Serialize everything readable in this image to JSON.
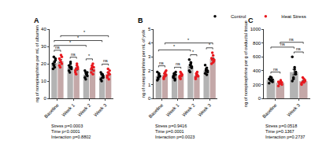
{
  "chart_data": [
    {
      "type": "bar",
      "label": "A",
      "ylabel": "ng of norepinephrine per mL of albumen",
      "categories": [
        "Baseline",
        "Week 1",
        "Week 2",
        "Week 3"
      ],
      "ylim": [
        0,
        40
      ],
      "yticks": [
        0,
        10,
        20,
        30,
        40
      ],
      "series": [
        {
          "name": "Control",
          "color": "#000000",
          "values": [
            20.5,
            18,
            13.8,
            12.6
          ],
          "errors": [
            0.9,
            0.7,
            0.6,
            0.6
          ],
          "points": [
            [
              17,
              19,
              21,
              22,
              20,
              24,
              18,
              23
            ],
            [
              16,
              18,
              20,
              17,
              19,
              15,
              21,
              18
            ],
            [
              12,
              15,
              14,
              13,
              16,
              11,
              14,
              15
            ],
            [
              11,
              14,
              12,
              13,
              15,
              10,
              14,
              12
            ]
          ]
        },
        {
          "name": "Heat Stress",
          "color": "#e8191f",
          "values": [
            21.5,
            17,
            17.1,
            14
          ],
          "errors": [
            0.9,
            0.7,
            0.7,
            0.7
          ],
          "points": [
            [
              19,
              22,
              25,
              20,
              23,
              18,
              21,
              24
            ],
            [
              15,
              17,
              19,
              18,
              16,
              14,
              20,
              17
            ],
            [
              15,
              18,
              20,
              16,
              17,
              19,
              14,
              18
            ],
            [
              12,
              15,
              14,
              16,
              13,
              17,
              11,
              14
            ]
          ]
        }
      ],
      "brackets": [
        {
          "from": {
            "category": "Baseline",
            "series": "Control"
          },
          "to": {
            "category": "Baseline",
            "series": "Heat Stress"
          },
          "label": "ns"
        },
        {
          "from": {
            "category": "Week 1",
            "series": "Control"
          },
          "to": {
            "category": "Week 1",
            "series": "Heat Stress"
          },
          "label": "ns"
        },
        {
          "from": {
            "category": "Week 2",
            "series": "Control"
          },
          "to": {
            "category": "Week 2",
            "series": "Heat Stress"
          },
          "label": "*"
        },
        {
          "from": {
            "category": "Week 3",
            "series": "Control"
          },
          "to": {
            "category": "Week 3",
            "series": "Heat Stress"
          },
          "label": "ns"
        },
        {
          "from": {
            "category": "Baseline",
            "series": "Control"
          },
          "to": {
            "category": "Week 2",
            "series": "Control"
          },
          "label": "*"
        },
        {
          "from": {
            "category": "Baseline",
            "series": "Control"
          },
          "to": {
            "category": "Week 3",
            "series": "Control"
          },
          "label": "*"
        },
        {
          "from": {
            "category": "Baseline",
            "series": "Heat Stress"
          },
          "to": {
            "category": "Week 3",
            "series": "Heat Stress"
          },
          "label": "*"
        }
      ],
      "stats": [
        "Stress p=0.0003",
        "Time p<0.0001",
        "Interaction p=0.8802"
      ]
    },
    {
      "type": "bar",
      "label": "B",
      "ylabel": "ng of norepinephrine per mL of yolk",
      "categories": [
        "Baseline",
        "Week 1",
        "Week 2",
        "Week 3"
      ],
      "ylim": [
        0,
        5
      ],
      "yticks": [
        0,
        1,
        2,
        3,
        4,
        5
      ],
      "series": [
        {
          "name": "Control",
          "color": "#000000",
          "values": [
            1.6,
            1.61,
            2.34,
            2.01
          ],
          "errors": [
            0.07,
            0.07,
            0.1,
            0.08
          ],
          "points": [
            [
              1.3,
              1.5,
              1.8,
              1.6,
              1.9,
              1.4,
              1.7,
              1.6
            ],
            [
              1.5,
              1.7,
              1.4,
              1.9,
              1.6,
              1.8,
              1.3,
              1.7
            ],
            [
              2.0,
              2.4,
              2.6,
              2.2,
              2.8,
              1.9,
              2.5,
              2.3
            ],
            [
              1.8,
              2.0,
              2.2,
              1.9,
              2.4,
              2.1,
              1.7,
              2.0
            ]
          ]
        },
        {
          "name": "Heat Stress",
          "color": "#e8191f",
          "values": [
            1.69,
            1.65,
            1.65,
            2.84
          ],
          "errors": [
            0.07,
            0.05,
            0.06,
            0.09
          ],
          "points": [
            [
              1.4,
              1.6,
              1.9,
              1.7,
              1.5,
              1.8,
              1.6,
              2.0
            ],
            [
              1.6,
              1.4,
              1.8,
              1.7,
              1.5,
              1.9,
              1.6,
              1.7
            ],
            [
              1.5,
              1.7,
              1.9,
              1.6,
              1.4,
              1.8,
              1.7,
              1.6
            ],
            [
              2.5,
              2.8,
              3.1,
              2.7,
              2.9,
              3.3,
              2.6,
              2.8
            ]
          ]
        }
      ],
      "brackets": [
        {
          "from": {
            "category": "Baseline",
            "series": "Control"
          },
          "to": {
            "category": "Baseline",
            "series": "Heat Stress"
          },
          "label": "ns"
        },
        {
          "from": {
            "category": "Week 1",
            "series": "Control"
          },
          "to": {
            "category": "Week 1",
            "series": "Heat Stress"
          },
          "label": "ns"
        },
        {
          "from": {
            "category": "Week 2",
            "series": "Control"
          },
          "to": {
            "category": "Week 2",
            "series": "Heat Stress"
          },
          "label": "*"
        },
        {
          "from": {
            "category": "Week 3",
            "series": "Control"
          },
          "to": {
            "category": "Week 3",
            "series": "Heat Stress"
          },
          "label": "*"
        },
        {
          "from": {
            "category": "Baseline",
            "series": "Control"
          },
          "to": {
            "category": "Week 2",
            "series": "Control"
          },
          "label": "*"
        },
        {
          "from": {
            "category": "Baseline",
            "series": "Heat Stress"
          },
          "to": {
            "category": "Week 3",
            "series": "Heat Stress"
          },
          "label": "*"
        }
      ],
      "stats": [
        "Stress p=0.9416",
        "Time p=0.0001",
        "Interaction p=0.0023"
      ]
    },
    {
      "type": "bar",
      "label": "C",
      "ylabel": "ng of norepinephrine per g of oviductal tissue",
      "categories": [
        "Baseline",
        "Week 3"
      ],
      "ylim": [
        0,
        1000
      ],
      "yticks": [
        0,
        200,
        400,
        600,
        800,
        1000
      ],
      "legend": "top right",
      "series": [
        {
          "name": "Control",
          "color": "#000000",
          "values": [
            266,
            379
          ],
          "errors": [
            11,
            40
          ],
          "points": [
            [
              220,
              260,
              300,
              240,
              280,
              310,
              250,
              270
            ],
            [
              250,
              300,
              420,
              350,
              600,
              280,
              450,
              380
            ]
          ]
        },
        {
          "name": "Heat Stress",
          "color": "#e8191f",
          "values": [
            224,
            248
          ],
          "errors": [
            9,
            11
          ],
          "points": [
            [
              180,
              220,
              260,
              200,
              240,
              210,
              250,
              230
            ],
            [
              200,
              240,
              280,
              260,
              220,
              300,
              230,
              250
            ]
          ]
        }
      ],
      "brackets": [
        {
          "from": {
            "category": "Baseline",
            "series": "Control"
          },
          "to": {
            "category": "Baseline",
            "series": "Heat Stress"
          },
          "label": "ns"
        },
        {
          "from": {
            "category": "Week 3",
            "series": "Control"
          },
          "to": {
            "category": "Week 3",
            "series": "Heat Stress"
          },
          "label": "ns"
        },
        {
          "from": {
            "category": "Baseline",
            "series": "Control"
          },
          "to": {
            "category": "Week 3",
            "series": "Control"
          },
          "label": "ns"
        },
        {
          "from": {
            "category": "Baseline",
            "series": "Heat Stress"
          },
          "to": {
            "category": "Week 3",
            "series": "Heat Stress"
          },
          "label": "ns"
        }
      ],
      "stats": [
        "Stress p=0.0518",
        "Time p=0.1367",
        "Interaction p=0.2737"
      ]
    }
  ]
}
